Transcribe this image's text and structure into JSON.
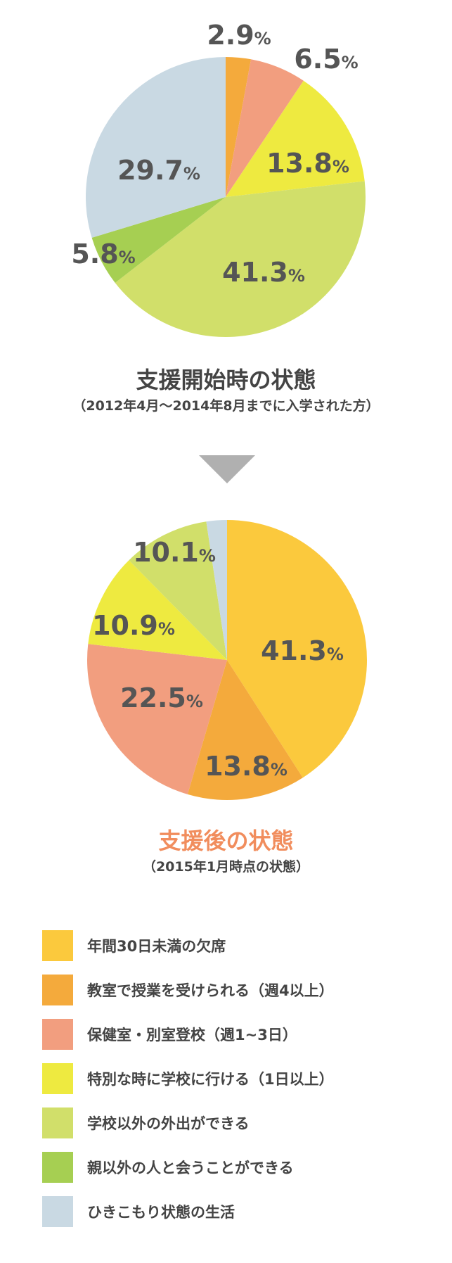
{
  "chart_data": [
    {
      "type": "pie",
      "title": "支援開始時の状態",
      "subtitle": "（2012年4月～2014年8月までに入学された方）",
      "slices": [
        {
          "category": "年間30日未満の欠席",
          "value": 0,
          "label": ""
        },
        {
          "category": "教室で授業を受けられる（週4以上）",
          "value": 2.9,
          "label": "2.9%"
        },
        {
          "category": "保健室・別室登校（週1~3日）",
          "value": 6.5,
          "label": "6.5%"
        },
        {
          "category": "特別な時に学校に行ける（1日以上）",
          "value": 13.8,
          "label": "13.8%"
        },
        {
          "category": "学校以外の外出ができる",
          "value": 41.3,
          "label": "41.3%"
        },
        {
          "category": "親以外の人と会うことができる",
          "value": 5.8,
          "label": "5.8%"
        },
        {
          "category": "ひきこもり状態の生活",
          "value": 29.7,
          "label": "29.7%"
        }
      ]
    },
    {
      "type": "pie",
      "title": "支援後の状態",
      "subtitle": "（2015年1月時点の状態）",
      "slices": [
        {
          "category": "年間30日未満の欠席",
          "value": 41.3,
          "label": "41.3%"
        },
        {
          "category": "教室で授業を受けられる（週4以上）",
          "value": 13.8,
          "label": "13.8%"
        },
        {
          "category": "保健室・別室登校（週1~3日）",
          "value": 22.5,
          "label": "22.5%"
        },
        {
          "category": "特別な時に学校に行ける（1日以上）",
          "value": 10.9,
          "label": "10.9%"
        },
        {
          "category": "学校以外の外出ができる",
          "value": 10.1,
          "label": "10.1%"
        },
        {
          "category": "親以外の人と会うことができる",
          "value": 0,
          "label": ""
        },
        {
          "category": "ひきこもり状態の生活",
          "value": 2.4,
          "label": ""
        }
      ]
    }
  ],
  "colors": {
    "年間30日未満の欠席": "#fbc93d",
    "教室で授業を受けられる（週4以上）": "#f4aa3c",
    "保健室・別室登校（週1~3日）": "#f29e7f",
    "特別な時に学校に行ける（1日以上）": "#eeea40",
    "学校以外の外出ができる": "#d1df6a",
    "親以外の人と会うことができる": "#a6cf52",
    "ひきこもり状態の生活": "#c9d9e3"
  },
  "title_colors": {
    "before": "#444444",
    "after": "#f18d5d"
  },
  "legend": [
    "年間30日未満の欠席",
    "教室で授業を受けられる（週4以上）",
    "保健室・別室登校（週1~3日）",
    "特別な時に学校に行ける（1日以上）",
    "学校以外の外出ができる",
    "親以外の人と会うことができる",
    "ひきこもり状態の生活"
  ],
  "arrow_icon": "down-triangle-icon"
}
